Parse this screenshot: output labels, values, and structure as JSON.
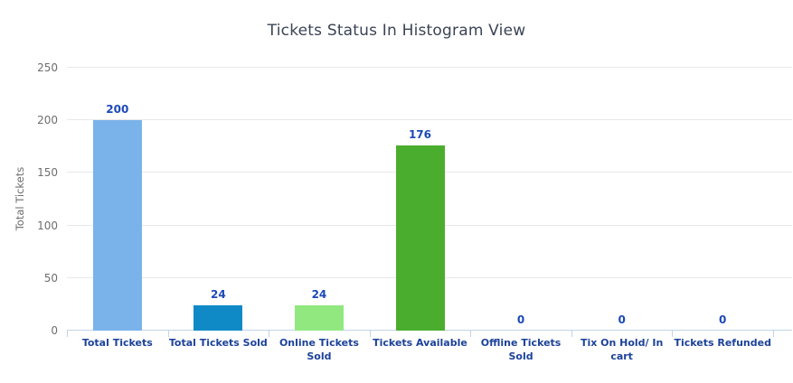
{
  "chart_data": {
    "type": "bar",
    "title": "Tickets Status In Histogram View",
    "xlabel": "",
    "ylabel": "Total Tickets",
    "ylim": [
      0,
      250
    ],
    "yticks": [
      0,
      50,
      100,
      150,
      200,
      250
    ],
    "grid": true,
    "legend": false,
    "categories": [
      "Total Tickets",
      "Total Tickets Sold",
      "Online Tickets Sold",
      "Tickets Available",
      "Offline Tickets Sold",
      "Tix On Hold/ In cart",
      "Tickets Refunded"
    ],
    "category_label_lines": [
      [
        "Total Tickets"
      ],
      [
        "Total Tickets Sold"
      ],
      [
        "Online Tickets",
        "Sold"
      ],
      [
        "Tickets Available"
      ],
      [
        "Offline Tickets",
        "Sold"
      ],
      [
        "Tix On Hold/ In",
        "cart"
      ],
      [
        "Tickets Refunded"
      ]
    ],
    "values": [
      200,
      24,
      24,
      176,
      0,
      0,
      0
    ],
    "value_labels": [
      "200",
      "24",
      "24",
      "176",
      "0",
      "0",
      "0"
    ],
    "bar_colors": [
      "#7AB3EA",
      "#0F8AC7",
      "#90E87F",
      "#4BAD2D",
      null,
      null,
      null
    ]
  },
  "colors": {
    "background": "#FFFFFF",
    "title_text": "#3B4455",
    "axis_text": "#6D6E71",
    "category_label": "#1C4299",
    "value_label": "#1C49B8",
    "gridline": "#E8E8E8",
    "axis_line": "#C4D3E8"
  }
}
